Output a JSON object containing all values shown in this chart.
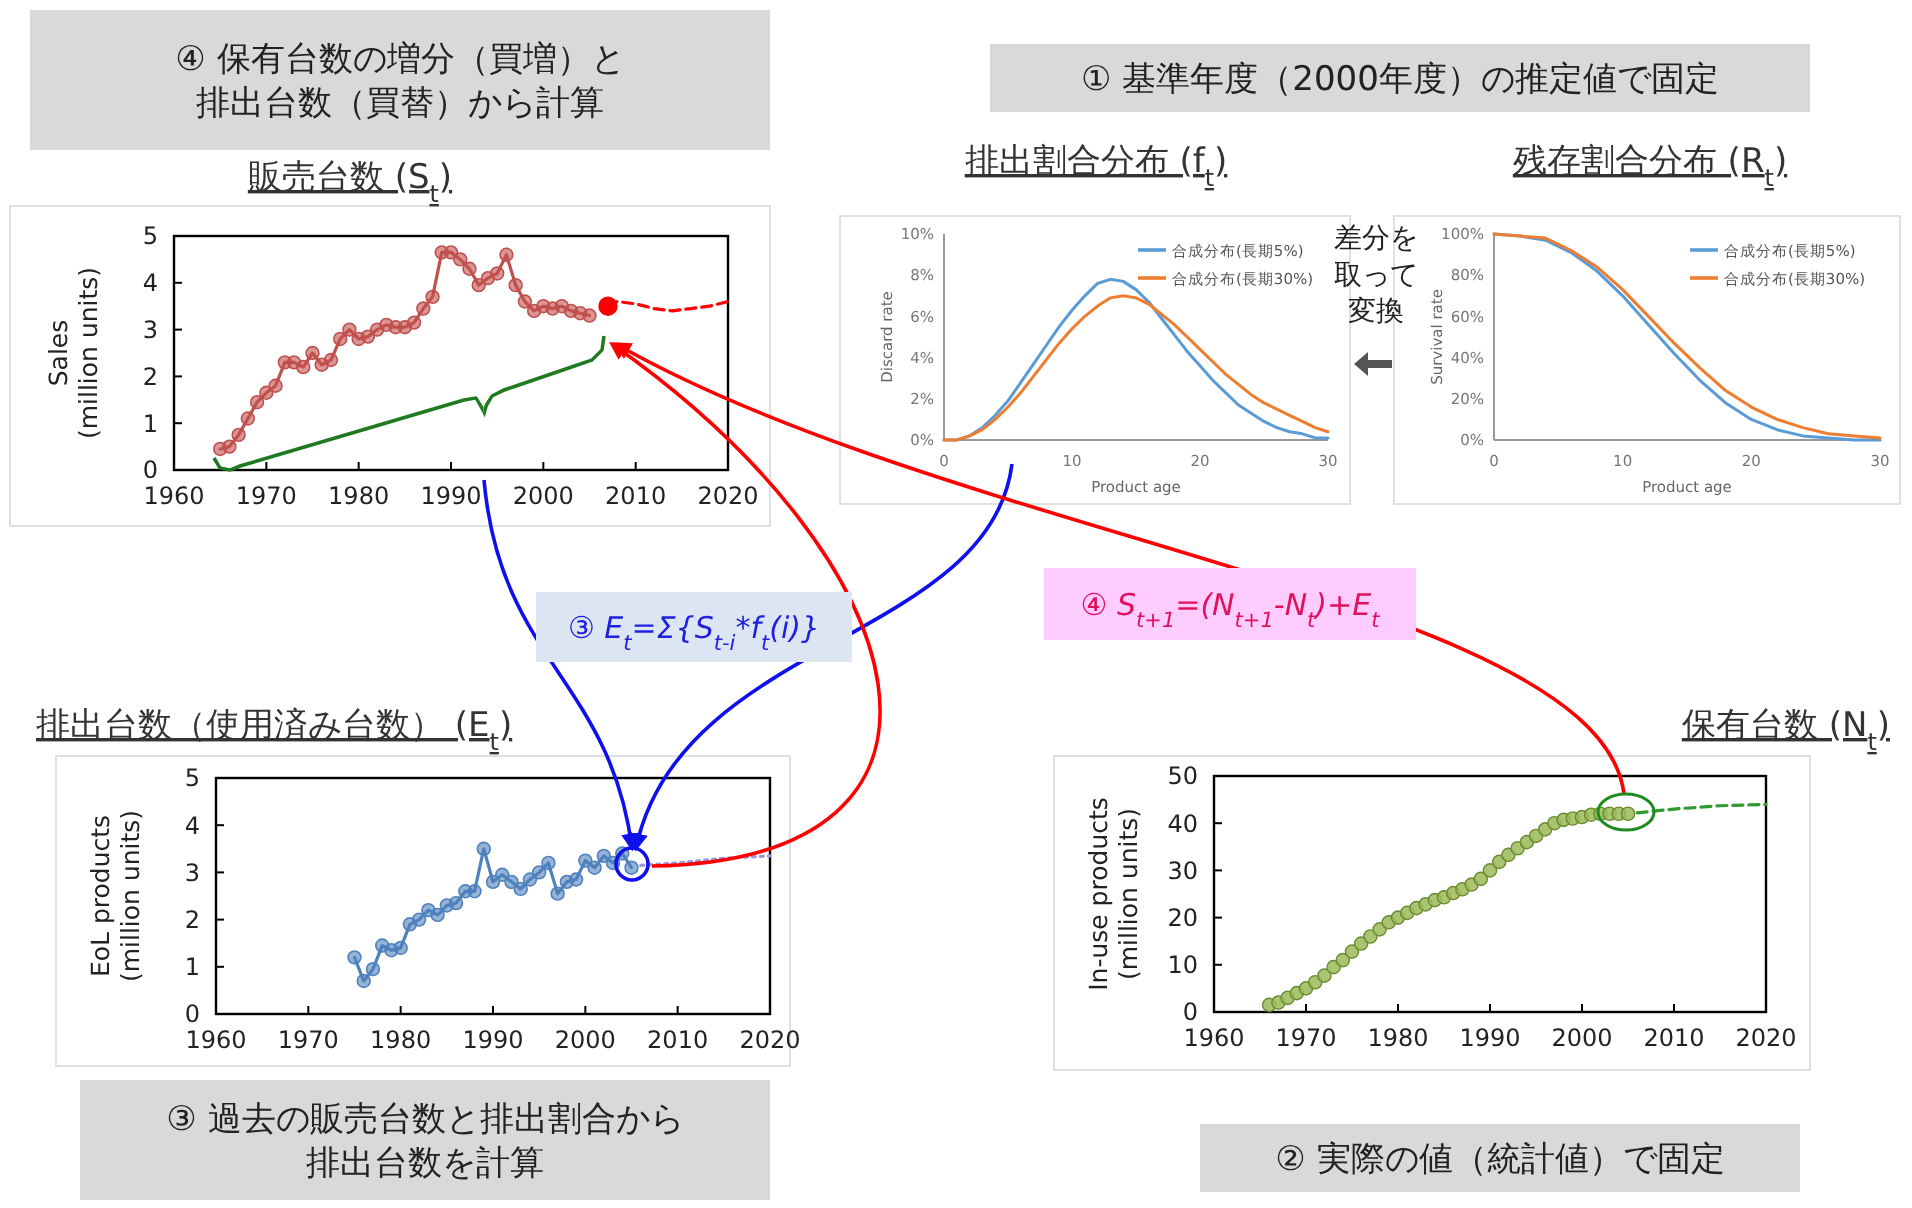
{
  "chart_data": [
    {
      "type": "line",
      "title": "販売台数 (S$_{t}$)",
      "ylabel": "Sales\n(million units)",
      "xlim": [
        1960,
        2020
      ],
      "ylim": [
        0,
        5
      ],
      "xticks": [
        1960,
        1970,
        1980,
        1990,
        2000,
        2010,
        2020
      ],
      "yticks": [
        0,
        1,
        2,
        3,
        4,
        5
      ],
      "series": [
        {
          "type": "line",
          "color": "#c0504d",
          "marker": "circle",
          "x": [
            1965,
            1966,
            1967,
            1968,
            1969,
            1970,
            1971,
            1972,
            1973,
            1974,
            1975,
            1976,
            1977,
            1978,
            1979,
            1980,
            1981,
            1982,
            1983,
            1984,
            1985,
            1986,
            1987,
            1988,
            1989,
            1990,
            1991,
            1992,
            1993,
            1994,
            1995,
            1996,
            1997,
            1998,
            1999,
            2000,
            2001,
            2002,
            2003,
            2004,
            2005
          ],
          "values": [
            0.45,
            0.5,
            0.75,
            1.1,
            1.45,
            1.65,
            1.8,
            2.3,
            2.3,
            2.2,
            2.5,
            2.25,
            2.35,
            2.8,
            3.0,
            2.8,
            2.85,
            3.0,
            3.1,
            3.05,
            3.05,
            3.15,
            3.45,
            3.7,
            4.65,
            4.65,
            4.5,
            4.3,
            3.95,
            4.1,
            4.2,
            4.6,
            3.95,
            3.6,
            3.4,
            3.5,
            3.45,
            3.5,
            3.4,
            3.35,
            3.3
          ]
        },
        {
          "type": "line",
          "color": "#ff0000",
          "marker": "none",
          "line_style": "dashed",
          "x": [
            2007,
            2008,
            2010,
            2012,
            2014,
            2016,
            2018,
            2020
          ],
          "values": [
            3.5,
            3.6,
            3.55,
            3.45,
            3.4,
            3.45,
            3.5,
            3.6
          ]
        },
        {
          "type": "scatter",
          "color": "#ff0000",
          "marker": "circle",
          "x": [
            2007
          ],
          "values": [
            3.5
          ]
        }
      ]
    },
    {
      "type": "line",
      "title": "排出割合分布 (f$_{t}$)",
      "xlabel": "Product age",
      "ylabel": "Discard rate",
      "xlim": [
        0,
        30
      ],
      "ylim": [
        0,
        10
      ],
      "xticks": [
        0,
        10,
        20,
        30
      ],
      "yticks": [
        {
          "value": 0,
          "label": "0%"
        },
        {
          "value": 2,
          "label": "2%"
        },
        {
          "value": 4,
          "label": "4%"
        },
        {
          "value": 6,
          "label": "6%"
        },
        {
          "value": 8,
          "label": "8%"
        },
        {
          "value": 10,
          "label": "10%"
        }
      ],
      "legend": "top right",
      "series": [
        {
          "name": "合成分布(長期5%)",
          "color": "#5b9bd5",
          "x": [
            0,
            1,
            2,
            3,
            4,
            5,
            6,
            7,
            8,
            9,
            10,
            11,
            12,
            13,
            14,
            15,
            16,
            17,
            18,
            19,
            20,
            21,
            22,
            23,
            24,
            25,
            26,
            27,
            28,
            29,
            30
          ],
          "values": [
            0,
            0,
            0.2,
            0.6,
            1.2,
            1.9,
            2.8,
            3.7,
            4.6,
            5.5,
            6.3,
            7.0,
            7.6,
            7.8,
            7.7,
            7.3,
            6.7,
            5.9,
            5.1,
            4.3,
            3.6,
            2.9,
            2.3,
            1.7,
            1.3,
            0.9,
            0.6,
            0.4,
            0.3,
            0.1,
            0.1
          ]
        },
        {
          "name": "合成分布(長期30%)",
          "color": "#ed7d31",
          "x": [
            0,
            1,
            2,
            3,
            4,
            5,
            6,
            7,
            8,
            9,
            10,
            11,
            12,
            13,
            14,
            15,
            16,
            17,
            18,
            19,
            20,
            21,
            22,
            23,
            24,
            25,
            26,
            27,
            28,
            29,
            30
          ],
          "values": [
            0,
            0,
            0.2,
            0.5,
            1.0,
            1.6,
            2.3,
            3.1,
            3.9,
            4.7,
            5.4,
            6.0,
            6.5,
            6.9,
            7.0,
            6.9,
            6.6,
            6.1,
            5.6,
            5.0,
            4.4,
            3.8,
            3.2,
            2.7,
            2.2,
            1.8,
            1.5,
            1.2,
            0.9,
            0.6,
            0.4
          ]
        }
      ]
    },
    {
      "type": "line",
      "title": "残存割合分布 (R$_{t}$)",
      "xlabel": "Product age",
      "ylabel": "Survival rate",
      "xlim": [
        0,
        30
      ],
      "ylim": [
        0,
        100
      ],
      "xticks": [
        0,
        10,
        20,
        30
      ],
      "yticks": [
        {
          "value": 0,
          "label": "0%"
        },
        {
          "value": 20,
          "label": "20%"
        },
        {
          "value": 40,
          "label": "40%"
        },
        {
          "value": 60,
          "label": "60%"
        },
        {
          "value": 80,
          "label": "80%"
        },
        {
          "value": 100,
          "label": "100%"
        }
      ],
      "legend": "top right",
      "series": [
        {
          "name": "合成分布(長期5%)",
          "color": "#5b9bd5",
          "x": [
            0,
            2,
            4,
            6,
            8,
            10,
            12,
            14,
            16,
            18,
            20,
            22,
            24,
            26,
            28,
            30
          ],
          "values": [
            100,
            99,
            97,
            91,
            82,
            70,
            56,
            42,
            29,
            18,
            10,
            5,
            2,
            1,
            0,
            0
          ]
        },
        {
          "name": "合成分布(長期30%)",
          "color": "#ed7d31",
          "x": [
            0,
            2,
            4,
            6,
            8,
            10,
            12,
            14,
            16,
            18,
            20,
            22,
            24,
            26,
            28,
            30
          ],
          "values": [
            100,
            99,
            98,
            92,
            84,
            73,
            60,
            47,
            35,
            24,
            16,
            10,
            6,
            3,
            2,
            1
          ]
        }
      ]
    },
    {
      "type": "line",
      "title": "排出台数（使用済み台数） (E$_{t}$)",
      "ylabel": "EoL products\n(million units)",
      "xlim": [
        1960,
        2020
      ],
      "ylim": [
        0,
        5
      ],
      "xticks": [
        1960,
        1970,
        1980,
        1990,
        2000,
        2010,
        2020
      ],
      "yticks": [
        0,
        1,
        2,
        3,
        4,
        5
      ],
      "series": [
        {
          "type": "line",
          "color": "#4f81bd",
          "marker": "circle",
          "x": [
            1975,
            1976,
            1977,
            1978,
            1979,
            1980,
            1981,
            1982,
            1983,
            1984,
            1985,
            1986,
            1987,
            1988,
            1989,
            1990,
            1991,
            1992,
            1993,
            1994,
            1995,
            1996,
            1997,
            1998,
            1999,
            2000,
            2001,
            2002,
            2003,
            2004,
            2005
          ],
          "values": [
            1.2,
            0.7,
            0.95,
            1.45,
            1.35,
            1.4,
            1.9,
            2.0,
            2.2,
            2.1,
            2.3,
            2.35,
            2.6,
            2.6,
            3.5,
            2.8,
            2.95,
            2.8,
            2.65,
            2.85,
            3.0,
            3.2,
            2.55,
            2.8,
            2.85,
            3.25,
            3.1,
            3.35,
            3.2,
            3.4,
            3.1
          ]
        },
        {
          "type": "line",
          "color": "#9999dd",
          "marker": "none",
          "line_style": "dotted",
          "x": [
            2006,
            2010,
            2015,
            2020
          ],
          "values": [
            3.15,
            3.2,
            3.3,
            3.35
          ]
        }
      ]
    },
    {
      "type": "line",
      "title": "保有台数 (N$_{t}$)",
      "ylabel": "In-use products\n(million units)",
      "xlim": [
        1960,
        2020
      ],
      "ylim": [
        0,
        50
      ],
      "xticks": [
        1960,
        1970,
        1980,
        1990,
        2000,
        2010,
        2020
      ],
      "yticks": [
        0,
        10,
        20,
        30,
        40,
        50
      ],
      "series": [
        {
          "type": "scatter",
          "color": "#9bbb59",
          "marker": "circle",
          "x": [
            1966,
            1967,
            1968,
            1969,
            1970,
            1971,
            1972,
            1973,
            1974,
            1975,
            1976,
            1977,
            1978,
            1979,
            1980,
            1981,
            1982,
            1983,
            1984,
            1985,
            1986,
            1987,
            1988,
            1989,
            1990,
            1991,
            1992,
            1993,
            1994,
            1995,
            1996,
            1997,
            1998,
            1999,
            2000,
            2001,
            2002,
            2003,
            2004,
            2005
          ],
          "values": [
            1.5,
            2,
            3,
            4,
            5,
            6.3,
            7.7,
            9.5,
            11,
            12.8,
            14.5,
            16,
            17.5,
            19,
            20,
            21,
            22,
            22.8,
            23.7,
            24.3,
            25.2,
            26,
            27,
            28.2,
            30,
            31.8,
            33.3,
            34.7,
            36,
            37.3,
            38.7,
            40,
            40.7,
            41,
            41.3,
            41.8,
            42,
            42,
            42,
            42
          ]
        },
        {
          "type": "line",
          "color": "#339933",
          "marker": "none",
          "line_style": "dashed",
          "x": [
            2006,
            2010,
            2015,
            2020
          ],
          "values": [
            42.2,
            43,
            43.7,
            44
          ]
        }
      ]
    },
    {
      "type": "other",
      "annotations": [
        "④ 保有台数の増分（買増）と排出台数（買替）から計算",
        "① 基準年度（2000年度）の推定値で固定",
        "差分を取って変換",
        "③ E$_{t}$=Σ{S$_{t-i}$*f$_{t}$(i)}",
        "④ S$_{t+1}$=(N$_{t+1}$-N$_{t}$)+E$_{t}$",
        "③ 過去の販売台数と排出割合から排出台数を計算",
        "② 実際の値（統計値）で固定"
      ]
    }
  ]
}
